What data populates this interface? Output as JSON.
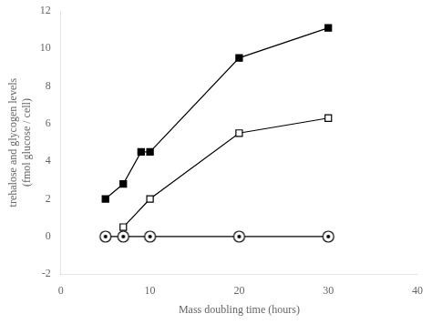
{
  "chart_data": {
    "type": "line",
    "xlabel": "Mass doubling time (hours)",
    "ylabel": "trehalose and glycogen levels\n(fmol glucose / cell)",
    "series": [
      {
        "x": [
          5,
          7,
          9,
          10,
          20,
          30
        ],
        "values": [
          2.0,
          2.8,
          4.5,
          4.5,
          9.5,
          11.1
        ],
        "color": "#000000",
        "marker": "square"
      },
      {
        "x": [
          7,
          10,
          20,
          30
        ],
        "values": [
          0.5,
          2.0,
          5.5,
          6.3
        ],
        "color": "#000000",
        "marker": "open_square"
      },
      {
        "x": [
          5,
          7,
          10,
          20,
          30
        ],
        "values": [
          0.0,
          0.0,
          0.0,
          0.0,
          0.0
        ],
        "color": "#000000",
        "marker": "circle_dot"
      }
    ],
    "xlim": [
      0,
      40
    ],
    "xticks": [
      0,
      10,
      20,
      30,
      40
    ],
    "ylim": [
      -2,
      12
    ],
    "yticks": [
      -2,
      0,
      2,
      4,
      6,
      8,
      10,
      12
    ],
    "grid": false
  }
}
